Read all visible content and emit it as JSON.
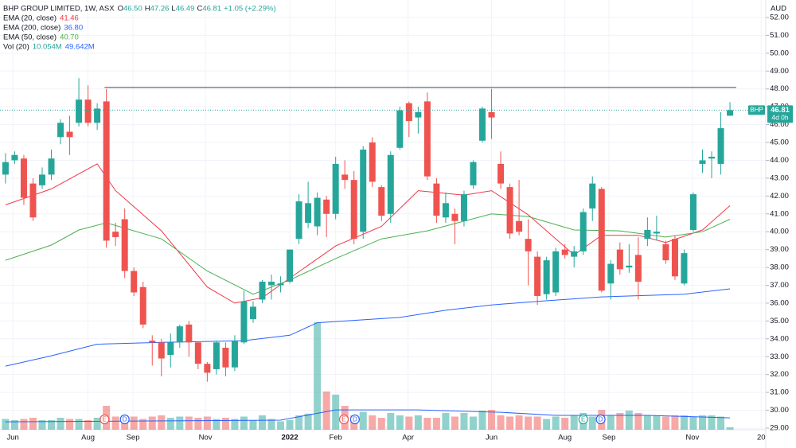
{
  "chart_data": {
    "type": "candlestick",
    "title": "BHP GROUP LIMITED, 1W, ASX",
    "ohlc_header": [
      {
        "label": "O",
        "value": "46.50"
      },
      {
        "label": "H",
        "value": "47.26"
      },
      {
        "label": "L",
        "value": "46.49"
      },
      {
        "label": "C",
        "value": "46.81"
      }
    ],
    "change": "+1.05 (+2.29%)",
    "currency": "AUD",
    "symbol_tag": "BHP",
    "price_tag": "46.81",
    "countdown": "4d 0h",
    "up_color": "#26a69a",
    "down_color": "#ef5350",
    "open": [
      43.2,
      44.0,
      44.1,
      42.7,
      42.6,
      43.2,
      45.3,
      45.6,
      46.1,
      47.4,
      46.1,
      47.3,
      40.0,
      40.7,
      37.8,
      36.9,
      33.9,
      33.8,
      33.1,
      33.8,
      34.8,
      33.8,
      32.6,
      32.3,
      33.5,
      32.4,
      33.8,
      35.1,
      36.2,
      37.0,
      37.0,
      37.2,
      39.6,
      40.5,
      40.3,
      41.8,
      41.0,
      43.2,
      42.9,
      40.0,
      45.0,
      42.5,
      41.0,
      44.7,
      47.2,
      46.4,
      47.3,
      42.7,
      40.8,
      41.0,
      40.6,
      42.6,
      45.1,
      46.7,
      43.8,
      42.5,
      40.6,
      39.6,
      38.6,
      36.5,
      36.6,
      39.0,
      38.6,
      38.9,
      41.3,
      42.4,
      37.1,
      39.0,
      38.0,
      38.7,
      39.6,
      39.9,
      39.3,
      39.6,
      37.1,
      40.1,
      43.8,
      44.1,
      43.8,
      46.5
    ],
    "high": [
      44.4,
      44.5,
      44.3,
      43.0,
      43.6,
      44.6,
      46.3,
      46.5,
      48.6,
      48.2,
      47.2,
      48.0,
      40.5,
      41.3,
      38.0,
      37.2,
      34.2,
      34.0,
      34.3,
      34.8,
      35.0,
      33.8,
      32.7,
      33.9,
      33.8,
      34.2,
      36.7,
      36.1,
      37.3,
      37.6,
      37.5,
      39.0,
      42.1,
      42.8,
      42.2,
      42.0,
      44.2,
      44.0,
      43.4,
      44.8,
      45.3,
      42.6,
      44.5,
      47.0,
      47.3,
      47.0,
      47.8,
      43.0,
      42.2,
      41.3,
      42.3,
      44.0,
      47.0,
      48.0,
      44.5,
      42.7,
      42.9,
      40.7,
      38.9,
      38.6,
      39.1,
      39.3,
      39.2,
      41.3,
      43.1,
      42.5,
      38.4,
      39.4,
      39.3,
      39.7,
      40.8,
      40.9,
      39.5,
      39.8,
      39.0,
      42.2,
      44.6,
      44.5,
      46.7,
      47.26
    ],
    "low": [
      42.7,
      43.8,
      41.5,
      40.6,
      42.4,
      42.9,
      44.9,
      44.3,
      45.9,
      45.9,
      45.7,
      39.1,
      39.2,
      37.4,
      36.4,
      34.6,
      32.5,
      31.9,
      32.4,
      33.5,
      33.0,
      32.3,
      31.6,
      32.0,
      31.9,
      32.2,
      33.7,
      34.9,
      36.0,
      36.2,
      36.6,
      37.1,
      39.3,
      40.2,
      39.8,
      39.7,
      40.7,
      42.4,
      39.3,
      39.6,
      42.5,
      40.6,
      40.5,
      44.6,
      45.3,
      45.5,
      42.9,
      40.5,
      40.5,
      39.3,
      40.3,
      42.4,
      45.0,
      45.2,
      42.4,
      39.6,
      39.8,
      37.0,
      35.9,
      36.2,
      36.4,
      38.5,
      38.0,
      38.7,
      40.6,
      36.6,
      36.2,
      37.6,
      37.7,
      36.2,
      39.2,
      39.5,
      38.2,
      37.3,
      37.0,
      40.0,
      43.3,
      43.0,
      43.2,
      46.49
    ],
    "close": [
      43.9,
      44.3,
      41.9,
      40.8,
      43.2,
      44.1,
      46.1,
      45.3,
      47.4,
      46.1,
      46.9,
      39.5,
      39.7,
      37.8,
      36.6,
      34.8,
      33.8,
      32.9,
      33.8,
      34.7,
      33.8,
      32.6,
      32.1,
      33.8,
      32.4,
      33.9,
      36.1,
      35.8,
      37.2,
      37.2,
      37.1,
      39.0,
      41.7,
      41.6,
      41.9,
      41.0,
      43.8,
      42.9,
      39.6,
      44.6,
      42.8,
      40.9,
      44.3,
      46.8,
      46.2,
      46.7,
      43.1,
      40.9,
      41.6,
      40.6,
      42.1,
      43.9,
      46.9,
      46.4,
      42.7,
      39.9,
      40.0,
      38.9,
      36.4,
      38.4,
      38.9,
      38.7,
      38.9,
      41.1,
      42.7,
      36.7,
      38.2,
      37.9,
      38.1,
      37.2,
      40.1,
      40.0,
      38.4,
      37.5,
      38.8,
      42.1,
      44.0,
      44.2,
      45.8,
      46.81
    ],
    "series": [
      {
        "name": "EMA (20, close)",
        "color": "#f23645",
        "value_label": "41.46",
        "x": [
          0,
          5,
          10,
          12,
          17,
          22,
          25,
          28,
          31,
          36,
          41,
          45,
          50,
          53,
          57,
          62,
          65,
          69,
          72,
          76,
          79
        ],
        "values": [
          41.5,
          42.4,
          43.8,
          42.3,
          40.05,
          36.9,
          36.0,
          36.3,
          37.4,
          39.2,
          40.3,
          42.3,
          42.05,
          42.3,
          40.95,
          38.7,
          39.8,
          39.8,
          39.4,
          40.1,
          41.46
        ]
      },
      {
        "name": "EMA (200, close)",
        "color": "#2962ff",
        "value_label": "36.80",
        "x": [
          0,
          5,
          10,
          17,
          26,
          31,
          34,
          43,
          48,
          53,
          58,
          65,
          74,
          79
        ],
        "values": [
          32.47,
          33.05,
          33.7,
          33.8,
          33.9,
          34.2,
          34.9,
          35.2,
          35.6,
          35.9,
          36.1,
          36.35,
          36.5,
          36.8
        ]
      },
      {
        "name": "EMA (50, close)",
        "color": "#4caf50",
        "value_label": "40.70",
        "x": [
          0,
          5,
          8,
          11,
          17,
          22,
          27,
          31,
          36,
          41,
          46,
          53,
          57,
          62,
          67,
          72,
          76,
          79
        ],
        "values": [
          38.4,
          39.25,
          40.1,
          40.5,
          39.6,
          37.8,
          36.5,
          37.3,
          38.5,
          39.6,
          40.05,
          41.0,
          40.85,
          40.1,
          40.05,
          39.7,
          40.0,
          40.7
        ]
      }
    ],
    "volume": {
      "name": "Vol (20)",
      "last_label": "10.054M",
      "ma_label": "49.642M",
      "ma_color": "#2962ff",
      "ylim": [
        0,
        1800
      ],
      "values": [
        45,
        40,
        45,
        50,
        40,
        40,
        50,
        45,
        45,
        40,
        50,
        100,
        55,
        60,
        55,
        45,
        55,
        60,
        50,
        55,
        55,
        50,
        55,
        45,
        50,
        45,
        55,
        40,
        60,
        45,
        35,
        40,
        60,
        67,
        450,
        160,
        147,
        100,
        60,
        75,
        60,
        50,
        70,
        60,
        55,
        60,
        50,
        50,
        70,
        55,
        70,
        55,
        80,
        83,
        60,
        55,
        60,
        55,
        55,
        45,
        55,
        50,
        60,
        70,
        55,
        83,
        60,
        70,
        80,
        70,
        60,
        60,
        55,
        60,
        60,
        55,
        60,
        60,
        55,
        10.054
      ],
      "ma": {
        "x": [
          0,
          30,
          36,
          45,
          54,
          60,
          70,
          79
        ],
        "values": [
          33,
          40,
          83,
          83,
          73,
          60,
          60,
          49.642
        ]
      }
    },
    "level_line": {
      "from": 10.8,
      "value": 48.08
    },
    "events": [
      {
        "x": 10.8,
        "label": "E",
        "color": "#ef5350"
      },
      {
        "x": 13,
        "label": "D",
        "color": "#2962ff"
      },
      {
        "x": 36.9,
        "label": "E",
        "color": "#ef5350"
      },
      {
        "x": 38.1,
        "label": "D",
        "color": "#2962ff"
      },
      {
        "x": 63,
        "label": "E",
        "color": "#26a69a"
      },
      {
        "x": 64.9,
        "label": "D",
        "color": "#2962ff"
      }
    ],
    "xlim": [
      -0.6,
      82.9
    ],
    "xticks": [
      {
        "value": 0.8,
        "label": "Jun"
      },
      {
        "value": 9,
        "label": "Aug"
      },
      {
        "value": 13.9,
        "label": "Sep"
      },
      {
        "value": 21.8,
        "label": "Nov"
      },
      {
        "value": 31,
        "label": "2022"
      },
      {
        "value": 36,
        "label": "Feb"
      },
      {
        "value": 43.9,
        "label": "Apr"
      },
      {
        "value": 53,
        "label": "Jun"
      },
      {
        "value": 61,
        "label": "Aug"
      },
      {
        "value": 65.8,
        "label": "Sep"
      },
      {
        "value": 74.9,
        "label": "Nov"
      },
      {
        "value": 82.4,
        "label": "20"
      }
    ],
    "ylim": [
      28.91,
      52.98
    ],
    "yticks": [
      {
        "value": 52,
        "label": "52.00"
      },
      {
        "value": 51,
        "label": "51.00"
      },
      {
        "value": 50,
        "label": "50.00"
      },
      {
        "value": 49,
        "label": "49.00"
      },
      {
        "value": 48,
        "label": "48.00"
      },
      {
        "value": 47,
        "label": "47.00"
      },
      {
        "value": 46,
        "label": "46.00"
      },
      {
        "value": 45,
        "label": "45.00"
      },
      {
        "value": 44,
        "label": "44.00"
      },
      {
        "value": 43,
        "label": "43.00"
      },
      {
        "value": 42,
        "label": "42.00"
      },
      {
        "value": 41,
        "label": "41.00"
      },
      {
        "value": 40,
        "label": "40.00"
      },
      {
        "value": 39,
        "label": "39.00"
      },
      {
        "value": 38,
        "label": "38.00"
      },
      {
        "value": 37,
        "label": "37.00"
      },
      {
        "value": 36,
        "label": "36.00"
      },
      {
        "value": 35,
        "label": "35.00"
      },
      {
        "value": 34,
        "label": "34.00"
      },
      {
        "value": 33,
        "label": "33.00"
      },
      {
        "value": 32,
        "label": "32.00"
      },
      {
        "value": 31,
        "label": "31.00"
      },
      {
        "value": 30,
        "label": "30.00"
      },
      {
        "value": 29,
        "label": "29.00"
      }
    ],
    "grid": true
  }
}
